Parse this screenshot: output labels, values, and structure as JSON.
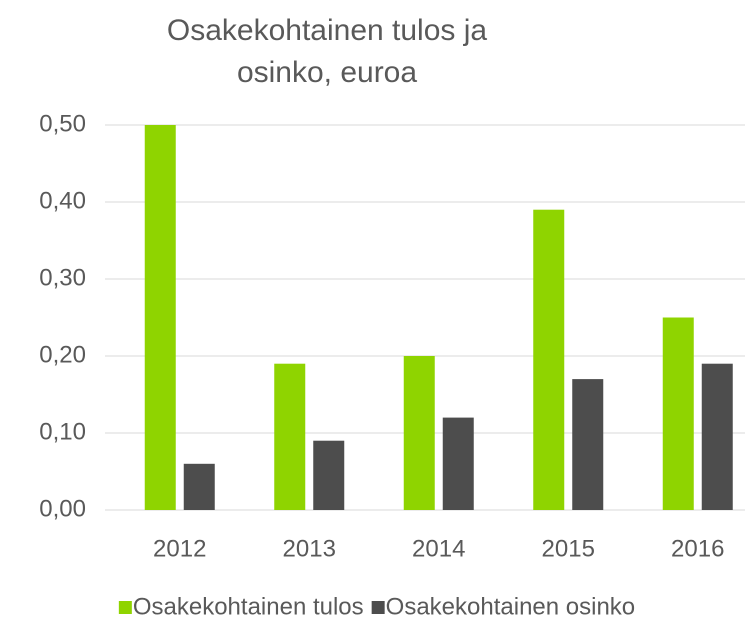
{
  "chart_data": {
    "type": "bar",
    "title": "Osakekohtainen tulos ja osinko, euroa",
    "categories": [
      "2012",
      "2013",
      "2014",
      "2015",
      "2016"
    ],
    "series": [
      {
        "name": "Osakekohtainen tulos",
        "color": "#8fd400",
        "values": [
          0.5,
          0.19,
          0.2,
          0.39,
          0.25
        ]
      },
      {
        "name": "Osakekohtainen osinko",
        "color": "#4d4d4d",
        "values": [
          0.06,
          0.09,
          0.12,
          0.17,
          0.19
        ]
      }
    ],
    "ylim": [
      0,
      0.5
    ],
    "yticks": [
      {
        "value": 0,
        "label": "0,00"
      },
      {
        "value": 0.1,
        "label": "0,10"
      },
      {
        "value": 0.2,
        "label": "0,20"
      },
      {
        "value": 0.3,
        "label": "0,30"
      },
      {
        "value": 0.4,
        "label": "0,40"
      },
      {
        "value": 0.5,
        "label": "0,50"
      }
    ],
    "grid": true,
    "legend": "bottom"
  }
}
